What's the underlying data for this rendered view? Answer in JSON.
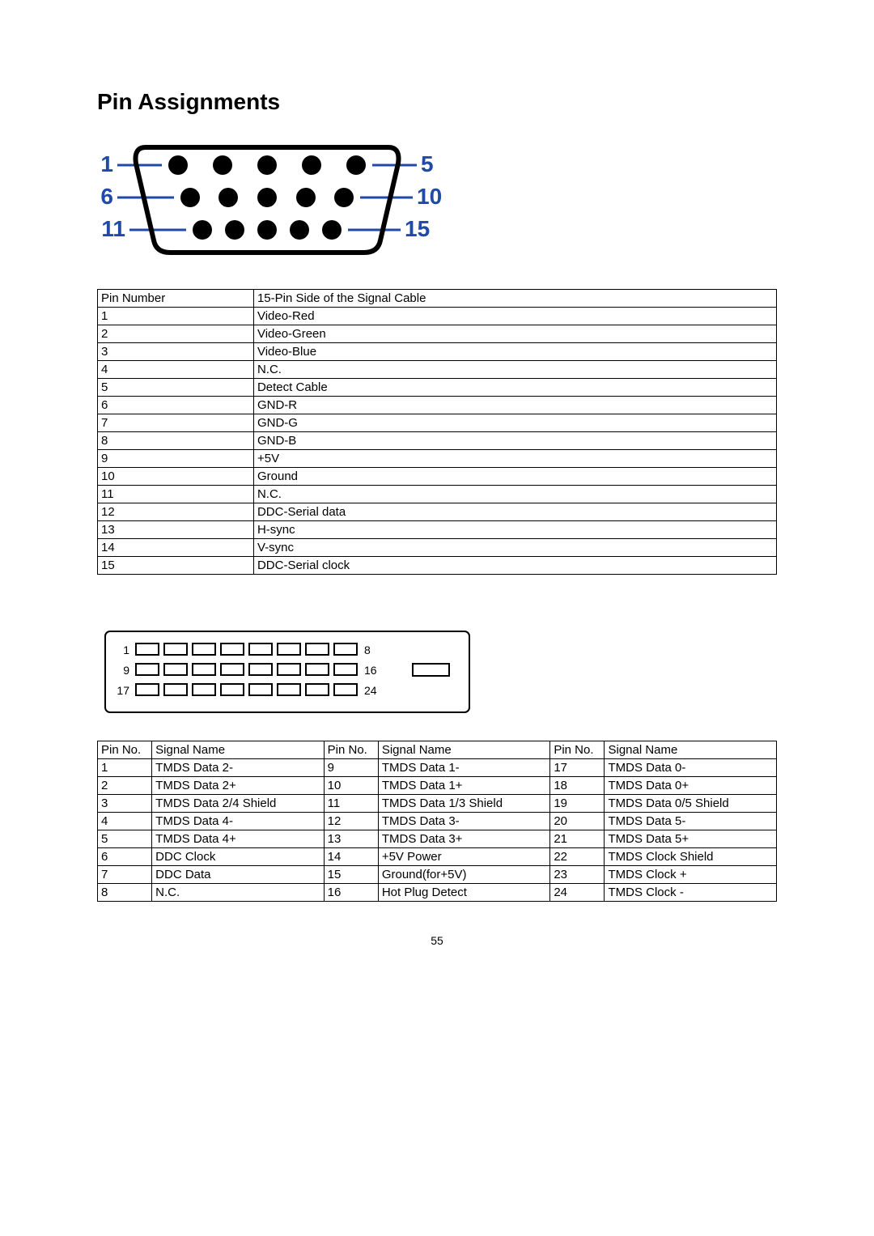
{
  "title": "Pin Assignments",
  "page_number": "55",
  "vga": {
    "diagram": {
      "left_labels": [
        "1",
        "6",
        "11"
      ],
      "right_labels": [
        "5",
        "10",
        "15"
      ],
      "label_colors": [
        "#1f4aa8",
        "#1f4aa8",
        "#1f4aa8"
      ],
      "rows": [
        5,
        5,
        5
      ],
      "outline_color": "#000000",
      "outline_width": 6,
      "pin_fill": "#000000",
      "pin_radius": 12,
      "label_fontsize": 28,
      "label_fontweight": "bold"
    },
    "table": {
      "headers": [
        "Pin Number",
        "15-Pin Side of the Signal Cable"
      ],
      "rows": [
        [
          "1",
          "Video-Red"
        ],
        [
          "2",
          "Video-Green"
        ],
        [
          "3",
          "Video-Blue"
        ],
        [
          "4",
          "N.C."
        ],
        [
          "5",
          "Detect Cable"
        ],
        [
          "6",
          "GND-R"
        ],
        [
          "7",
          "GND-G"
        ],
        [
          "8",
          "GND-B"
        ],
        [
          "9",
          "+5V"
        ],
        [
          "10",
          "Ground"
        ],
        [
          "11",
          "N.C."
        ],
        [
          "12",
          "DDC-Serial data"
        ],
        [
          "13",
          "H-sync"
        ],
        [
          "14",
          "V-sync"
        ],
        [
          "15",
          "DDC-Serial clock"
        ]
      ]
    }
  },
  "dvi": {
    "diagram": {
      "left_labels": [
        "1",
        "9",
        "17"
      ],
      "right_labels": [
        "8",
        "16",
        "24"
      ],
      "cols": 8,
      "rows": 3,
      "outline_color": "#000000",
      "outline_width": 2,
      "pin_stroke": "#000000",
      "pin_fill": "#ffffff",
      "label_fontsize": 14
    },
    "table": {
      "headers": [
        "Pin No.",
        "Signal Name",
        "Pin No.",
        "Signal Name",
        "Pin No.",
        "Signal Name"
      ],
      "rows": [
        [
          "1",
          "TMDS Data 2-",
          "9",
          "TMDS Data 1-",
          "17",
          "TMDS Data 0-"
        ],
        [
          "2",
          "TMDS Data 2+",
          "10",
          "TMDS Data 1+",
          "18",
          "TMDS Data 0+"
        ],
        [
          "3",
          "TMDS Data 2/4 Shield",
          "11",
          "TMDS Data 1/3 Shield",
          "19",
          "TMDS Data 0/5 Shield"
        ],
        [
          "4",
          "TMDS Data 4-",
          "12",
          "TMDS Data 3-",
          "20",
          "TMDS Data 5-"
        ],
        [
          "5",
          "TMDS Data 4+",
          "13",
          "TMDS Data 3+",
          "21",
          "TMDS Data 5+"
        ],
        [
          "6",
          "DDC Clock",
          "14",
          "+5V Power",
          "22",
          "TMDS Clock Shield"
        ],
        [
          "7",
          "DDC Data",
          "15",
          "Ground(for+5V)",
          "23",
          "TMDS Clock +"
        ],
        [
          "8",
          "N.C.",
          "16",
          "Hot Plug Detect",
          "24",
          "TMDS Clock -"
        ]
      ]
    }
  }
}
